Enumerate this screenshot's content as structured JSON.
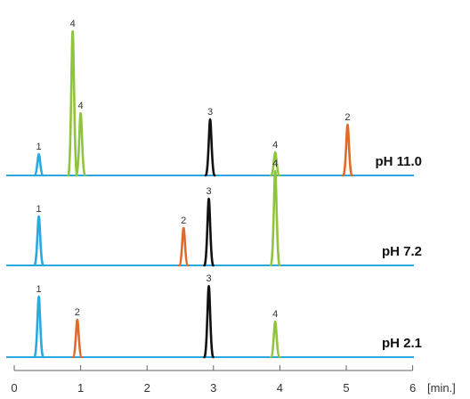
{
  "chart_data": {
    "type": "line",
    "x_ticks": [
      "0",
      "1",
      "2",
      "3",
      "4",
      "5",
      "6"
    ],
    "x_unit": "[min.]",
    "xlim": [
      0,
      6
    ],
    "colors": {
      "baseline": "#29a9e0",
      "peak_1": "#29a9e0",
      "peak_2": "#e06a2a",
      "peak_3": "#111111",
      "peak_4": "#8fc43f"
    },
    "series": [
      {
        "name": "pH 11.0",
        "peaks": [
          {
            "label": "1",
            "x": 0.37,
            "height": 0.24
          },
          {
            "label": "4",
            "x": 0.88,
            "height": 1.62
          },
          {
            "label": "4",
            "x": 1.0,
            "height": 0.7
          },
          {
            "label": "3",
            "x": 2.95,
            "height": 0.63
          },
          {
            "label": "4",
            "x": 3.93,
            "height": 0.26
          },
          {
            "label": "2",
            "x": 5.02,
            "height": 0.57
          }
        ]
      },
      {
        "name": "pH 7.2",
        "peaks": [
          {
            "label": "1",
            "x": 0.37,
            "height": 0.55
          },
          {
            "label": "2",
            "x": 2.55,
            "height": 0.42
          },
          {
            "label": "3",
            "x": 2.93,
            "height": 0.75
          },
          {
            "label": "4",
            "x": 3.93,
            "height": 1.06
          }
        ]
      },
      {
        "name": "pH 2.1",
        "peaks": [
          {
            "label": "1",
            "x": 0.37,
            "height": 0.68
          },
          {
            "label": "2",
            "x": 0.95,
            "height": 0.42
          },
          {
            "label": "3",
            "x": 2.93,
            "height": 0.8
          },
          {
            "label": "4",
            "x": 3.93,
            "height": 0.4
          }
        ]
      }
    ]
  }
}
